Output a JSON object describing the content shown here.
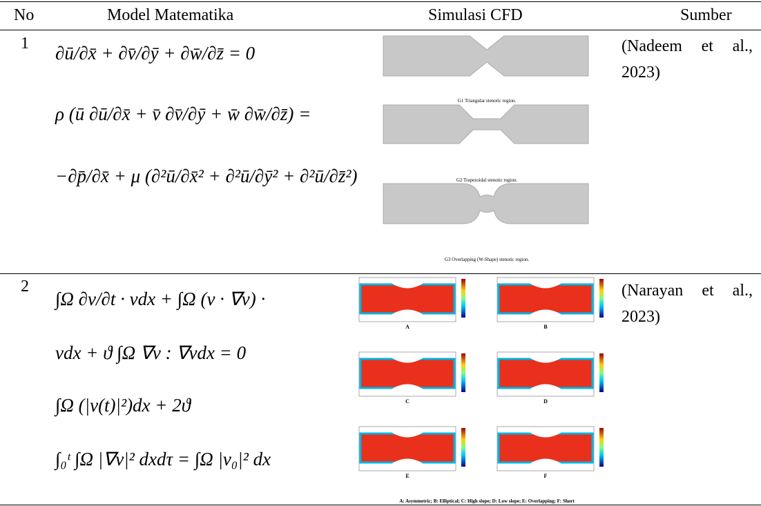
{
  "table": {
    "header": [
      "No",
      "Model Matematika",
      "Simulasi CFD",
      "Sumber"
    ],
    "rows": [
      {
        "no": "1",
        "equations": [
          "∂ū/∂x̄ + ∂v̄/∂ȳ + ∂w̄/∂z̄ = 0",
          "ρ (ū ∂ū/∂x̄ + v̄ ∂v̄/∂ȳ + w̄ ∂w̄/∂z̄) =",
          "−∂p̄/∂x̄ + μ (∂²ū/∂x̄² + ∂²ū/∂ȳ² + ∂²ū/∂z̄²)"
        ],
        "figure": {
          "captions": [
            "G1 Triangular stenotic region.",
            "G2 Trapezoidal stenotic region.",
            "G3 Overlapping (W-Shape) stenotic region."
          ]
        },
        "source": "(Nadeem et al., 2023)"
      },
      {
        "no": "2",
        "equations": [
          "∫Ω ∂v/∂t · vdx + ∫Ω (v · ∇v) ·",
          "vdx + ϑ ∫Ω ∇v : ∇vdx = 0",
          "∫Ω (|v(t)|²)dx + 2ϑ",
          "∫₀ᵗ ∫Ω |∇v|² dxdτ = ∫Ω |v₀|² dx"
        ],
        "figure": {
          "panels": [
            "A",
            "B",
            "C",
            "D",
            "E",
            "F"
          ],
          "caption": "A: Asymmetric; B: Elliptical; C: High slope; D: Low slope; E: Overlapping; F: Short"
        },
        "source": "(Narayan et al., 2023)"
      }
    ]
  }
}
